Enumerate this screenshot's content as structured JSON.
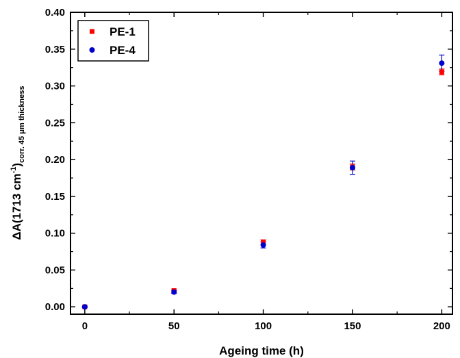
{
  "chart_data": {
    "type": "scatter",
    "xlabel": "Ageing time (h)",
    "ylabel": {
      "pre": "ΔA(1713 cm",
      "sup": "-1",
      "post": ")",
      "sub": "corr. 45 μm thickness"
    },
    "xlim": [
      -8,
      206
    ],
    "ylim": [
      -0.01,
      0.4
    ],
    "xticks": [
      0,
      50,
      100,
      150,
      200
    ],
    "xtick_labels": [
      "0",
      "50",
      "100",
      "150",
      "200"
    ],
    "yticks": [
      0.0,
      0.05,
      0.1,
      0.15,
      0.2,
      0.25,
      0.3,
      0.35,
      0.4
    ],
    "ytick_labels": [
      "0.00",
      "0.05",
      "0.10",
      "0.15",
      "0.20",
      "0.25",
      "0.30",
      "0.35",
      "0.40"
    ],
    "legend_position": "top-left",
    "series": [
      {
        "name": "PE-1",
        "marker": "square",
        "color": "#ff0000",
        "x": [
          0,
          50,
          100,
          150,
          200
        ],
        "y": [
          0.0,
          0.022,
          0.088,
          0.19,
          0.319
        ],
        "err": [
          0.001,
          0.002,
          0.003,
          0.004,
          0.004
        ]
      },
      {
        "name": "PE-4",
        "marker": "circle",
        "color": "#0000cc",
        "x": [
          0,
          50,
          100,
          150,
          200
        ],
        "y": [
          0.0,
          0.02,
          0.084,
          0.189,
          0.331
        ],
        "err": [
          0.001,
          0.002,
          0.004,
          0.009,
          0.011
        ]
      }
    ]
  }
}
